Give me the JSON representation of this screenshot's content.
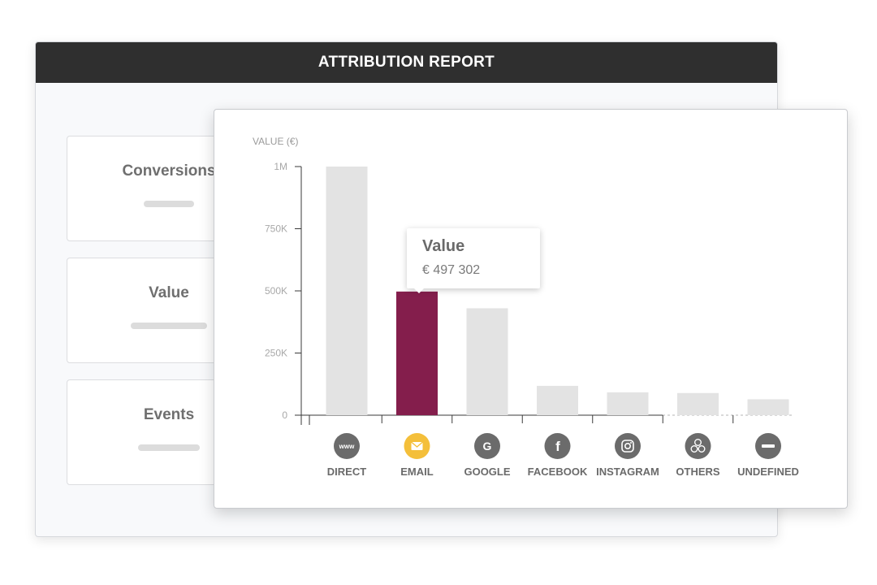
{
  "report": {
    "title": "ATTRIBUTION REPORT"
  },
  "metrics": [
    {
      "label": "Conversions"
    },
    {
      "label": "Value"
    },
    {
      "label": "Events"
    }
  ],
  "tooltip": {
    "title": "Value",
    "value": "€ 497 302"
  },
  "colors": {
    "bar_default": "#e3e3e3",
    "bar_highlight": "#841e4c",
    "icon_default": "#6b6b6b",
    "icon_highlight": "#f4bf3a",
    "header_bg": "#2f2f2f"
  },
  "chart_data": {
    "type": "bar",
    "ylabel": "VALUE (€)",
    "ylim": [
      0,
      1000000
    ],
    "yticks": [
      {
        "value": 0,
        "label": "0"
      },
      {
        "value": 250000,
        "label": "250K"
      },
      {
        "value": 500000,
        "label": "500K"
      },
      {
        "value": 750000,
        "label": "750K"
      },
      {
        "value": 1000000,
        "label": "1M"
      }
    ],
    "categories": [
      "DIRECT",
      "EMAIL",
      "GOOGLE",
      "FACEBOOK",
      "INSTAGRAM",
      "OTHERS",
      "UNDEFINED"
    ],
    "icons": [
      "www-icon",
      "email-icon",
      "google-icon",
      "facebook-icon",
      "instagram-icon",
      "others-icon",
      "undefined-icon"
    ],
    "values": [
      1000000,
      497302,
      430000,
      118000,
      92000,
      89000,
      64000
    ],
    "highlight_index": 1
  }
}
